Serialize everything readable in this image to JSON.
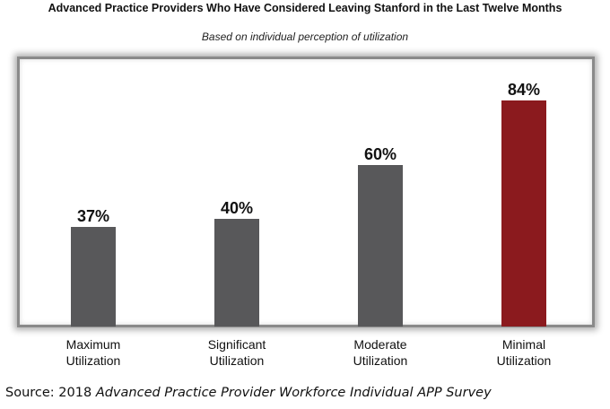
{
  "chart_data": {
    "type": "bar",
    "title": "Advanced Practice Providers Who Have Considered Leaving Stanford in the Last Twelve Months",
    "subtitle": "Based on individual perception of utilization",
    "categories": [
      "Maximum\nUtilization",
      "Significant\nUtilization",
      "Moderate\nUtilization",
      "Minimal\nUtilization"
    ],
    "values": [
      37,
      40,
      60,
      84
    ],
    "data_labels": [
      "37%",
      "40%",
      "60%",
      "84%"
    ],
    "ylim": [
      0,
      100
    ],
    "xlabel": "",
    "ylabel": "",
    "grid": false,
    "colors": [
      "#58585a",
      "#58585a",
      "#58585a",
      "#8b1a1e"
    ]
  },
  "source": {
    "prefix": "Source: 2018 ",
    "title": "Advanced Practice Provider Workforce Individual APP Survey"
  }
}
